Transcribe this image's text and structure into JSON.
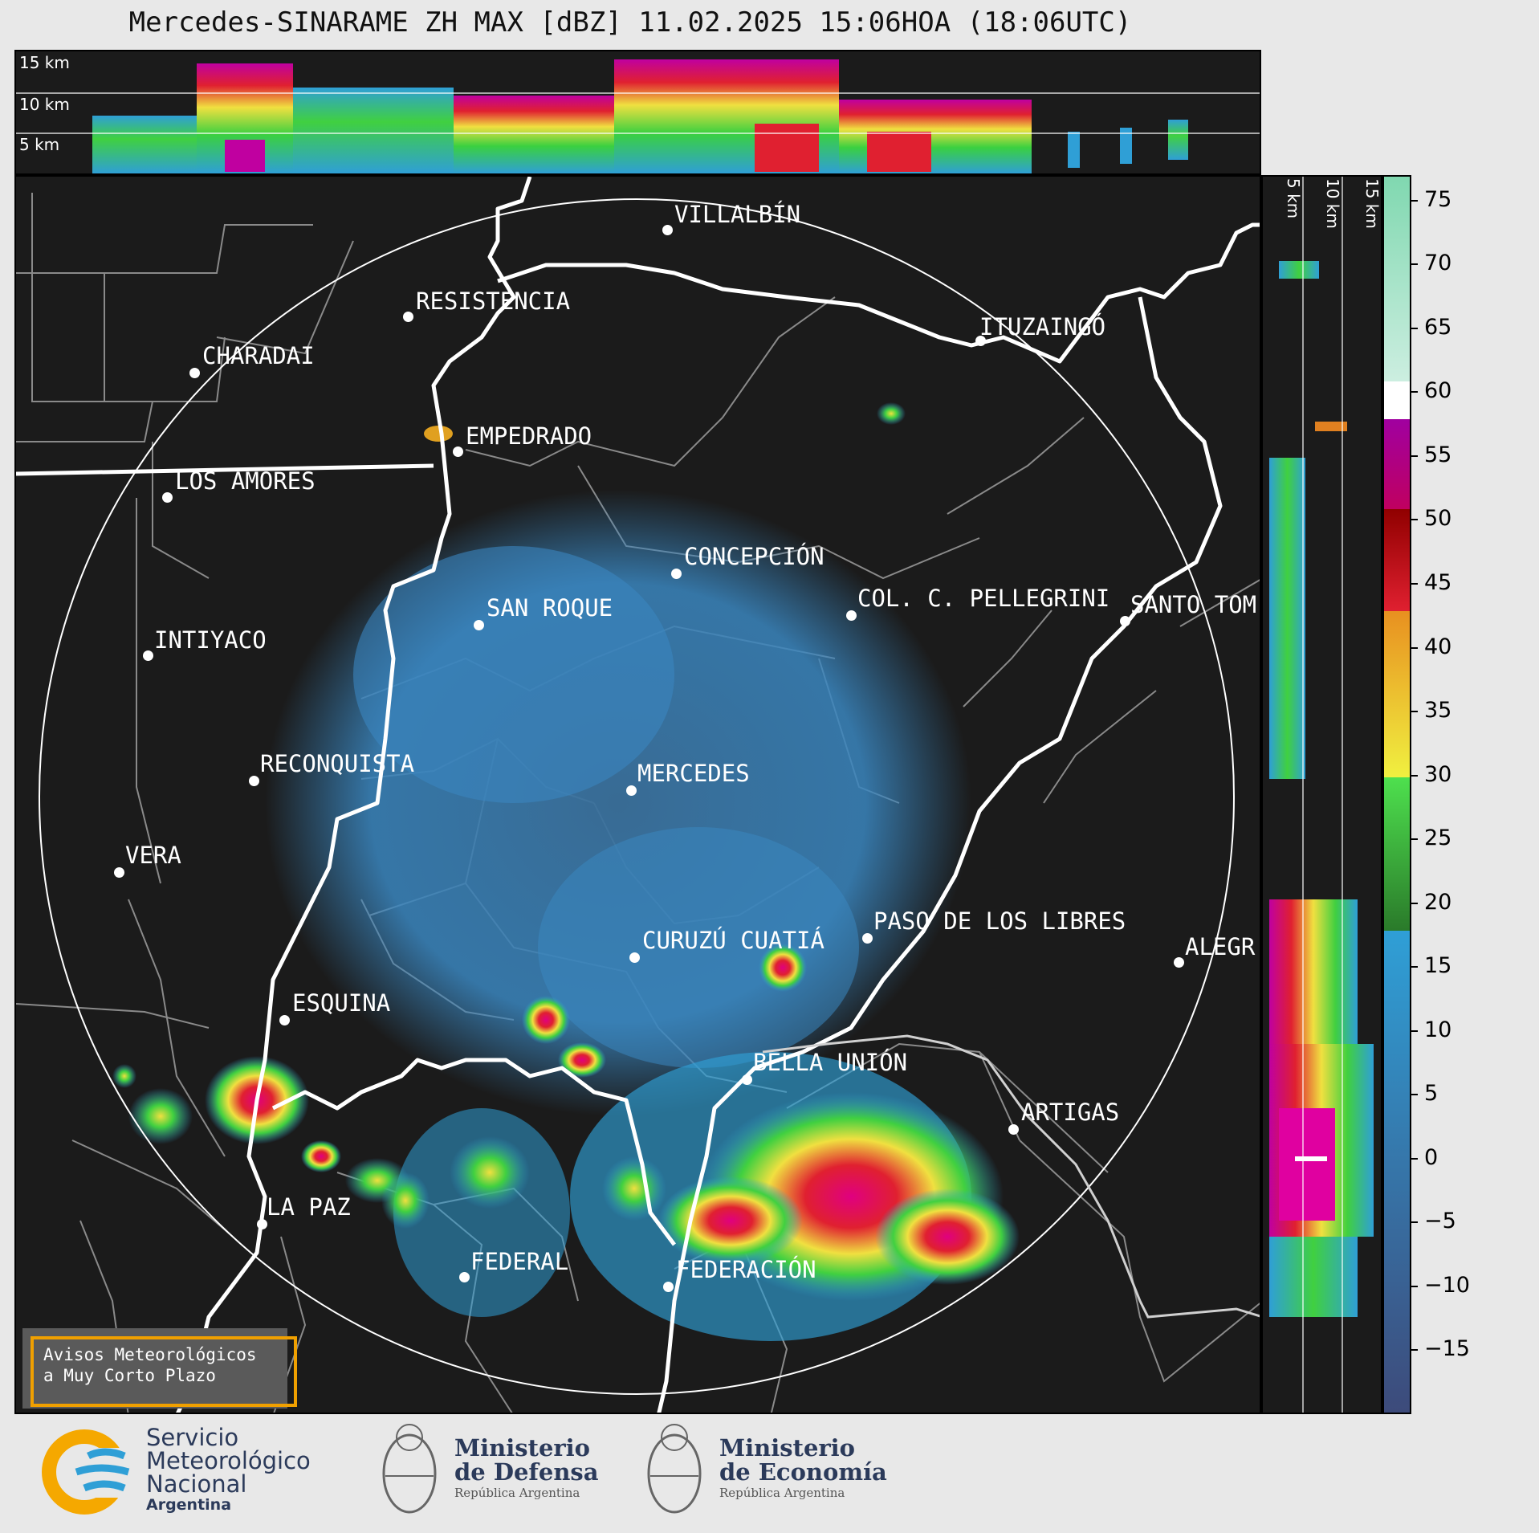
{
  "title": "Mercedes-SINARAME ZH MAX [dBZ] 11.02.2025 15:06HOA (18:06UTC)",
  "top_panel": {
    "labels": [
      "15 km",
      "10 km",
      "5 km"
    ]
  },
  "side_panel": {
    "labels": [
      "5 km",
      "10 km",
      "15 km"
    ]
  },
  "cities": [
    {
      "name": "VILLALBÍN"
    },
    {
      "name": "RESISTENCIA"
    },
    {
      "name": "CHARADAI"
    },
    {
      "name": "ITUZAINGÓ"
    },
    {
      "name": "EMPEDRADO"
    },
    {
      "name": "LOS AMORES"
    },
    {
      "name": "CONCEPCIÓN"
    },
    {
      "name": "SAN ROQUE"
    },
    {
      "name": "COL. C. PELLEGRINI"
    },
    {
      "name": "SANTO TOM"
    },
    {
      "name": "INTIYACO"
    },
    {
      "name": "RECONQUISTA"
    },
    {
      "name": "MERCEDES"
    },
    {
      "name": "VERA"
    },
    {
      "name": "PASO DE LOS LIBRES"
    },
    {
      "name": "CURUZÚ CUATIÁ"
    },
    {
      "name": "ALEGR"
    },
    {
      "name": "ESQUINA"
    },
    {
      "name": "BELLA UNIÓN"
    },
    {
      "name": "ARTIGAS"
    },
    {
      "name": "LA PAZ"
    },
    {
      "name": "FEDERAL"
    },
    {
      "name": "FEDERACIÓN"
    }
  ],
  "colorbar": {
    "unit": "dBZ",
    "ticks": [
      "75",
      "70",
      "65",
      "60",
      "55",
      "50",
      "45",
      "40",
      "35",
      "30",
      "25",
      "20",
      "15",
      "10",
      "5",
      "0",
      "−5",
      "−10",
      "−15"
    ],
    "min": -20,
    "max": 77,
    "bands": [
      {
        "from": -20,
        "to": 18,
        "color": "#3d4a7a",
        "color_top": "#2f9fd6"
      },
      {
        "from": 18,
        "to": 30,
        "color": "#2a7a2a",
        "color_top": "#4ee04e"
      },
      {
        "from": 30,
        "to": 43,
        "color": "#f0f040",
        "color_top": "#e89020"
      },
      {
        "from": 43,
        "to": 51,
        "color": "#e02030",
        "color_top": "#900000"
      },
      {
        "from": 51,
        "to": 58,
        "color": "#c00060",
        "color_top": "#a000a0"
      },
      {
        "from": 58,
        "to": 61,
        "color": "#ffffff",
        "color_top": "#ffffff"
      },
      {
        "from": 61,
        "to": 77,
        "color": "#cceee0",
        "color_top": "#80d8b0"
      }
    ]
  },
  "warning": {
    "line1": "Avisos Meteorológicos",
    "line2": "a Muy Corto Plazo"
  },
  "footer": {
    "smn": {
      "line1": "Servicio",
      "line2": "Meteorológico",
      "line3": "Nacional",
      "line4": "Argentina"
    },
    "defensa": {
      "line1": "Ministerio",
      "line2": "de Defensa",
      "line3": "República Argentina"
    },
    "economia": {
      "line1": "Ministerio",
      "line2": "de Economía",
      "line3": "República Argentina"
    }
  }
}
